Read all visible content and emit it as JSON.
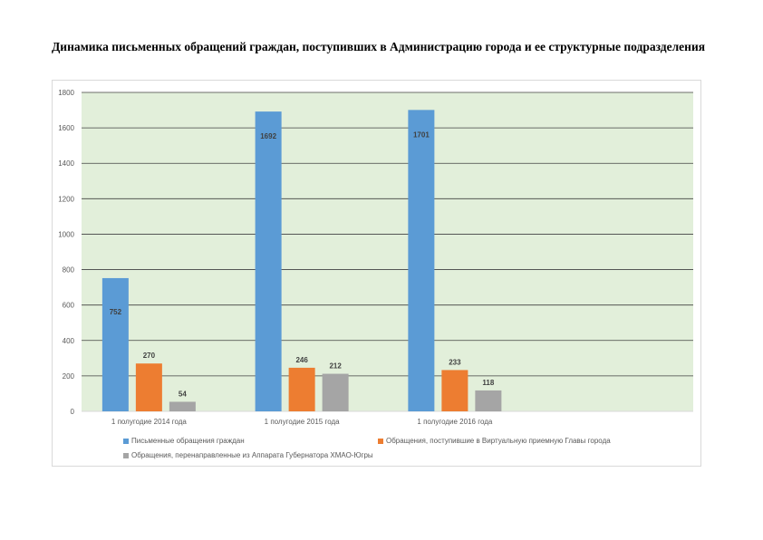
{
  "title": "Динамика письменных обращений граждан, поступивших в Администрацию города и ее структурные подразделения",
  "chart_data": {
    "type": "bar",
    "title": "",
    "categories": [
      "1 полугодие 2014 года",
      "1 полугодие 2015 года",
      "1 полугодие 2016 года",
      ""
    ],
    "series": [
      {
        "name": "Письменные обращения граждан",
        "color": "#5b9bd5",
        "values": [
          752,
          1692,
          1701,
          null
        ]
      },
      {
        "name": "Обращения, поступившие в Виртуальную приемную Главы города",
        "color": "#ed7d31",
        "values": [
          270,
          246,
          233,
          null
        ]
      },
      {
        "name": "Обращения, перенаправленные из Аппарата Губернатора ХМАО-Югры",
        "color": "#a5a5a5",
        "values": [
          54,
          212,
          118,
          null
        ]
      }
    ],
    "ylim": [
      0,
      1800
    ],
    "yticks": [
      0,
      200,
      400,
      600,
      800,
      1000,
      1200,
      1400,
      1600,
      1800
    ],
    "grid": true,
    "plot_background": "#e2efda",
    "legend": "bottom"
  }
}
